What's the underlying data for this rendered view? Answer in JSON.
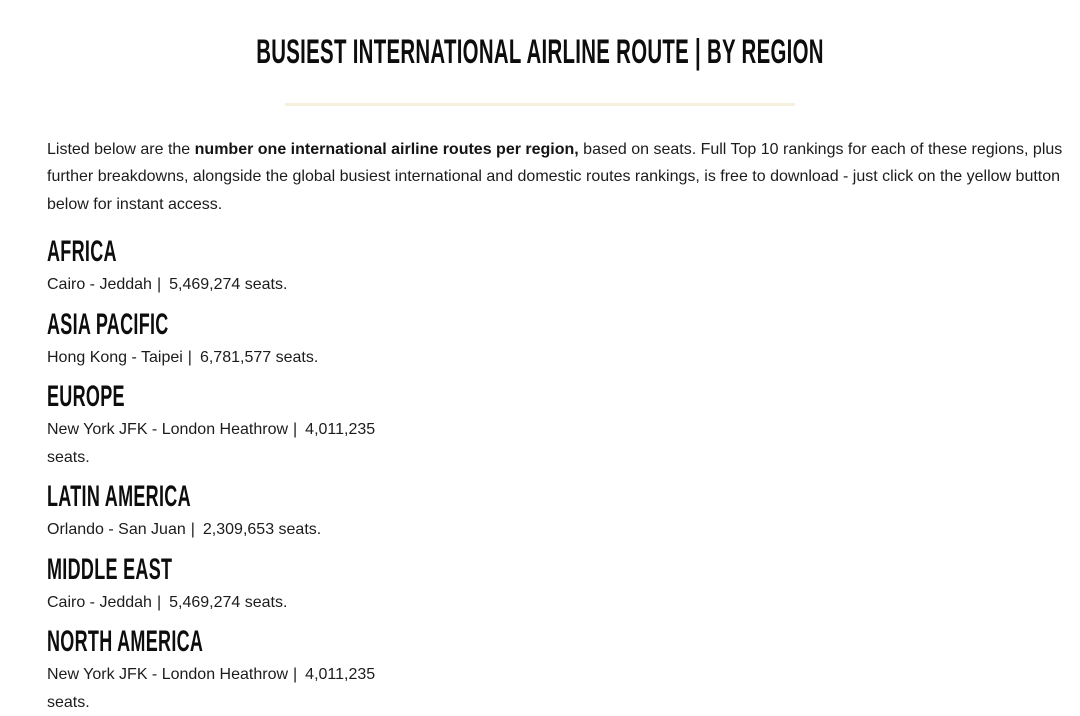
{
  "page": {
    "title": "BUSIEST INTERNATIONAL AIRLINE ROUTE | BY REGION",
    "intro": {
      "text_before_bold": "Listed below are the ",
      "bold_text": "number one international airline routes per region,",
      "text_after_bold": " based on seats. Full Top 10 rankings for each of these regions, plus further breakdowns, alongside the global busiest international and domestic routes rankings, is free to download - just click on the yellow button below for instant access."
    },
    "separator": "|",
    "sections": [
      {
        "region": "AFRICA",
        "route": "Cairo - Jeddah",
        "seats": "5,469,274 seats."
      },
      {
        "region": "ASIA PACIFIC",
        "route": "Hong Kong - Taipei",
        "seats": "6,781,577 seats."
      },
      {
        "region": "EUROPE",
        "route": "New York JFK - London Heathrow",
        "seats": "4,011,235 seats."
      },
      {
        "region": "LATIN AMERICA",
        "route": "Orlando - San Juan",
        "seats": "2,309,653 seats."
      },
      {
        "region": "MIDDLE EAST",
        "route": "Cairo - Jeddah",
        "seats": "5,469,274 seats."
      },
      {
        "region": "NORTH AMERICA",
        "route": "New York JFK - London Heathrow",
        "seats": "4,011,235 seats."
      }
    ],
    "colors": {
      "background": "#ffffff",
      "title_underline": "#f5f0dc",
      "heading_text": "#0d0d0d",
      "body_text": "#1c1c1c"
    }
  }
}
